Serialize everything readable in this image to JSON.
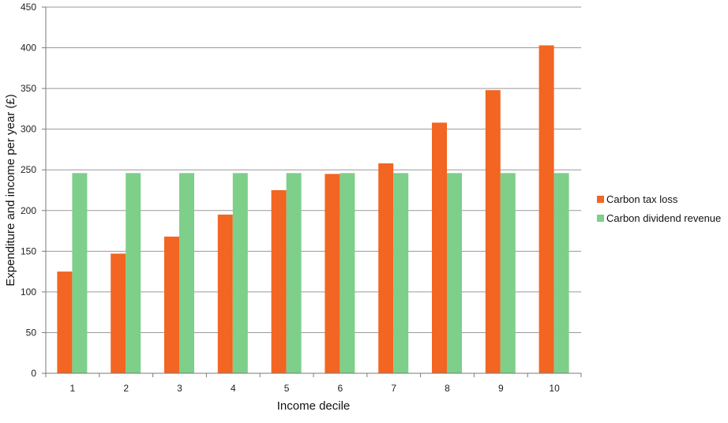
{
  "chart_data": {
    "type": "bar",
    "title": "",
    "xlabel": "Income decile",
    "ylabel": "Expenditure and income per year (£)",
    "categories": [
      "1",
      "2",
      "3",
      "4",
      "5",
      "6",
      "7",
      "8",
      "9",
      "10"
    ],
    "series": [
      {
        "name": "Carbon tax loss",
        "color": "#f26522",
        "values": [
          125,
          147,
          168,
          195,
          225,
          245,
          258,
          308,
          348,
          403
        ]
      },
      {
        "name": "Carbon dividend revenue",
        "color": "#7ecf8a",
        "values": [
          246,
          246,
          246,
          246,
          246,
          246,
          246,
          246,
          246,
          246
        ]
      }
    ],
    "ylim": [
      0,
      450
    ],
    "yticks": [
      0,
      50,
      100,
      150,
      200,
      250,
      300,
      350,
      400,
      450
    ],
    "grid": true,
    "legend": "right"
  }
}
